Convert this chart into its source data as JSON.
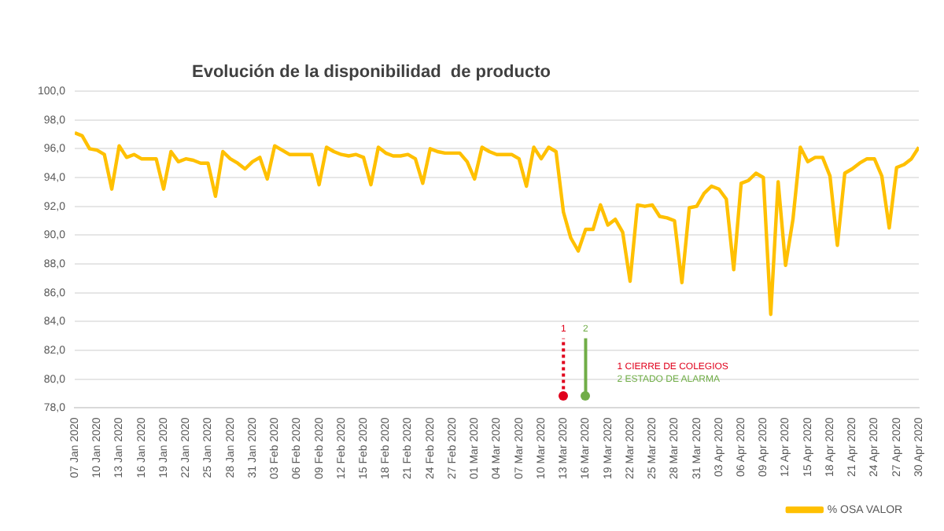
{
  "chart_data": {
    "type": "line",
    "title": "Evolución de la disponibilidad  de producto",
    "x": [
      "2020-01-07",
      "2020-01-08",
      "2020-01-09",
      "2020-01-10",
      "2020-01-11",
      "2020-01-12",
      "2020-01-13",
      "2020-01-14",
      "2020-01-15",
      "2020-01-16",
      "2020-01-17",
      "2020-01-18",
      "2020-01-19",
      "2020-01-20",
      "2020-01-21",
      "2020-01-22",
      "2020-01-23",
      "2020-01-24",
      "2020-01-25",
      "2020-01-26",
      "2020-01-27",
      "2020-01-28",
      "2020-01-29",
      "2020-01-30",
      "2020-01-31",
      "2020-02-01",
      "2020-02-02",
      "2020-02-03",
      "2020-02-04",
      "2020-02-05",
      "2020-02-06",
      "2020-02-07",
      "2020-02-08",
      "2020-02-09",
      "2020-02-10",
      "2020-02-11",
      "2020-02-12",
      "2020-02-13",
      "2020-02-14",
      "2020-02-15",
      "2020-02-16",
      "2020-02-17",
      "2020-02-18",
      "2020-02-19",
      "2020-02-20",
      "2020-02-21",
      "2020-02-22",
      "2020-02-23",
      "2020-02-24",
      "2020-02-25",
      "2020-02-26",
      "2020-02-27",
      "2020-02-28",
      "2020-02-29",
      "2020-03-01",
      "2020-03-02",
      "2020-03-03",
      "2020-03-04",
      "2020-03-05",
      "2020-03-06",
      "2020-03-07",
      "2020-03-08",
      "2020-03-09",
      "2020-03-10",
      "2020-03-11",
      "2020-03-12",
      "2020-03-13",
      "2020-03-14",
      "2020-03-15",
      "2020-03-16",
      "2020-03-17",
      "2020-03-18",
      "2020-03-19",
      "2020-03-20",
      "2020-03-21",
      "2020-03-22",
      "2020-03-23",
      "2020-03-24",
      "2020-03-25",
      "2020-03-26",
      "2020-03-27",
      "2020-03-28",
      "2020-03-29",
      "2020-03-30",
      "2020-03-31",
      "2020-04-01",
      "2020-04-02",
      "2020-04-03",
      "2020-04-04",
      "2020-04-05",
      "2020-04-06",
      "2020-04-07",
      "2020-04-08",
      "2020-04-09",
      "2020-04-10",
      "2020-04-11",
      "2020-04-12",
      "2020-04-13",
      "2020-04-14",
      "2020-04-15",
      "2020-04-16",
      "2020-04-17",
      "2020-04-18",
      "2020-04-19",
      "2020-04-20",
      "2020-04-21",
      "2020-04-22",
      "2020-04-23",
      "2020-04-24",
      "2020-04-25",
      "2020-04-26",
      "2020-04-27",
      "2020-04-28",
      "2020-04-29",
      "2020-04-30"
    ],
    "series": [
      {
        "name": "% OSA VALOR",
        "color": "#ffc000",
        "values": [
          97.1,
          96.9,
          96.0,
          95.9,
          95.6,
          93.2,
          96.2,
          95.4,
          95.6,
          95.3,
          95.3,
          95.3,
          93.2,
          95.8,
          95.1,
          95.3,
          95.2,
          95.0,
          95.0,
          92.7,
          95.8,
          95.3,
          95.0,
          94.6,
          95.1,
          95.4,
          93.9,
          96.2,
          95.9,
          95.6,
          95.6,
          95.6,
          95.6,
          93.5,
          96.1,
          95.8,
          95.6,
          95.5,
          95.6,
          95.4,
          93.5,
          96.1,
          95.7,
          95.5,
          95.5,
          95.6,
          95.3,
          93.6,
          96.0,
          95.8,
          95.7,
          95.7,
          95.7,
          95.1,
          93.9,
          96.1,
          95.8,
          95.6,
          95.6,
          95.6,
          95.3,
          93.4,
          96.1,
          95.3,
          96.1,
          95.8,
          91.6,
          89.8,
          88.9,
          90.4,
          90.4,
          92.1,
          90.7,
          91.1,
          90.2,
          86.8,
          92.1,
          92.0,
          92.1,
          91.3,
          91.2,
          91.0,
          86.7,
          91.9,
          92.0,
          92.9,
          93.4,
          93.2,
          92.5,
          87.6,
          93.6,
          93.8,
          94.3,
          94.0,
          84.5,
          93.7,
          87.9,
          91.1,
          96.1,
          95.1,
          95.4,
          95.4,
          94.1,
          89.3,
          94.3,
          94.6,
          95.0,
          95.3,
          95.3,
          94.1,
          90.5,
          94.7,
          94.9,
          95.3,
          96.1
        ]
      }
    ],
    "xlim": [
      "2020-01-07",
      "2020-04-30"
    ],
    "xticks": [
      {
        "value": "2020-01-07",
        "label": "07 Jan 2020"
      },
      {
        "value": "2020-01-10",
        "label": "10 Jan 2020"
      },
      {
        "value": "2020-01-13",
        "label": "13 Jan 2020"
      },
      {
        "value": "2020-01-16",
        "label": "16 Jan 2020"
      },
      {
        "value": "2020-01-19",
        "label": "19 Jan 2020"
      },
      {
        "value": "2020-01-22",
        "label": "22 Jan 2020"
      },
      {
        "value": "2020-01-25",
        "label": "25 Jan 2020"
      },
      {
        "value": "2020-01-28",
        "label": "28 Jan 2020"
      },
      {
        "value": "2020-01-31",
        "label": "31 Jan 2020"
      },
      {
        "value": "2020-02-03",
        "label": "03 Feb 2020"
      },
      {
        "value": "2020-02-06",
        "label": "06 Feb 2020"
      },
      {
        "value": "2020-02-09",
        "label": "09 Feb 2020"
      },
      {
        "value": "2020-02-12",
        "label": "12 Feb 2020"
      },
      {
        "value": "2020-02-15",
        "label": "15 Feb 2020"
      },
      {
        "value": "2020-02-18",
        "label": "18 Feb 2020"
      },
      {
        "value": "2020-02-21",
        "label": "21 Feb 2020"
      },
      {
        "value": "2020-02-24",
        "label": "24 Feb 2020"
      },
      {
        "value": "2020-02-27",
        "label": "27 Feb 2020"
      },
      {
        "value": "2020-03-01",
        "label": "01 Mar 2020"
      },
      {
        "value": "2020-03-04",
        "label": "04 Mar 2020"
      },
      {
        "value": "2020-03-07",
        "label": "07 Mar 2020"
      },
      {
        "value": "2020-03-10",
        "label": "10 Mar 2020"
      },
      {
        "value": "2020-03-13",
        "label": "13 Mar 2020"
      },
      {
        "value": "2020-03-16",
        "label": "16 Mar 2020"
      },
      {
        "value": "2020-03-19",
        "label": "19 Mar 2020"
      },
      {
        "value": "2020-03-22",
        "label": "22 Mar 2020"
      },
      {
        "value": "2020-03-25",
        "label": "25 Mar 2020"
      },
      {
        "value": "2020-03-28",
        "label": "28 Mar 2020"
      },
      {
        "value": "2020-03-31",
        "label": "31 Mar 2020"
      },
      {
        "value": "2020-04-03",
        "label": "03 Apr 2020"
      },
      {
        "value": "2020-04-06",
        "label": "06 Apr 2020"
      },
      {
        "value": "2020-04-09",
        "label": "09 Apr 2020"
      },
      {
        "value": "2020-04-12",
        "label": "12 Apr 2020"
      },
      {
        "value": "2020-04-15",
        "label": "15 Apr 2020"
      },
      {
        "value": "2020-04-18",
        "label": "18 Apr 2020"
      },
      {
        "value": "2020-04-21",
        "label": "21 Apr 2020"
      },
      {
        "value": "2020-04-24",
        "label": "24 Apr 2020"
      },
      {
        "value": "2020-04-27",
        "label": "27 Apr 2020"
      },
      {
        "value": "2020-04-30",
        "label": "30 Apr 2020"
      }
    ],
    "ylim": [
      78,
      100
    ],
    "yticks": [
      {
        "value": 78,
        "label": "78,0"
      },
      {
        "value": 80,
        "label": "80,0"
      },
      {
        "value": 82,
        "label": "82,0"
      },
      {
        "value": 84,
        "label": "84,0"
      },
      {
        "value": 86,
        "label": "86,0"
      },
      {
        "value": 88,
        "label": "88,0"
      },
      {
        "value": 90,
        "label": "90,0"
      },
      {
        "value": 92,
        "label": "92,0"
      },
      {
        "value": 94,
        "label": "94,0"
      },
      {
        "value": 96,
        "label": "96,0"
      },
      {
        "value": 98,
        "label": "98,0"
      },
      {
        "value": 100,
        "label": "100,0"
      }
    ],
    "ref_lines": [
      {
        "axis": "x",
        "value": "2020-03-13",
        "label": "1",
        "color": "#e0001b",
        "line_style": "dotted"
      },
      {
        "axis": "x",
        "value": "2020-03-16",
        "label": "2",
        "color": "#70ad47",
        "line_style": "solid"
      }
    ],
    "annotations": [
      "1 CIERRE DE COLEGIOS",
      "2 ESTADO DE ALARMA"
    ],
    "grid": "y",
    "legend": "bottom right",
    "marker": "none",
    "line_style": "solid"
  }
}
